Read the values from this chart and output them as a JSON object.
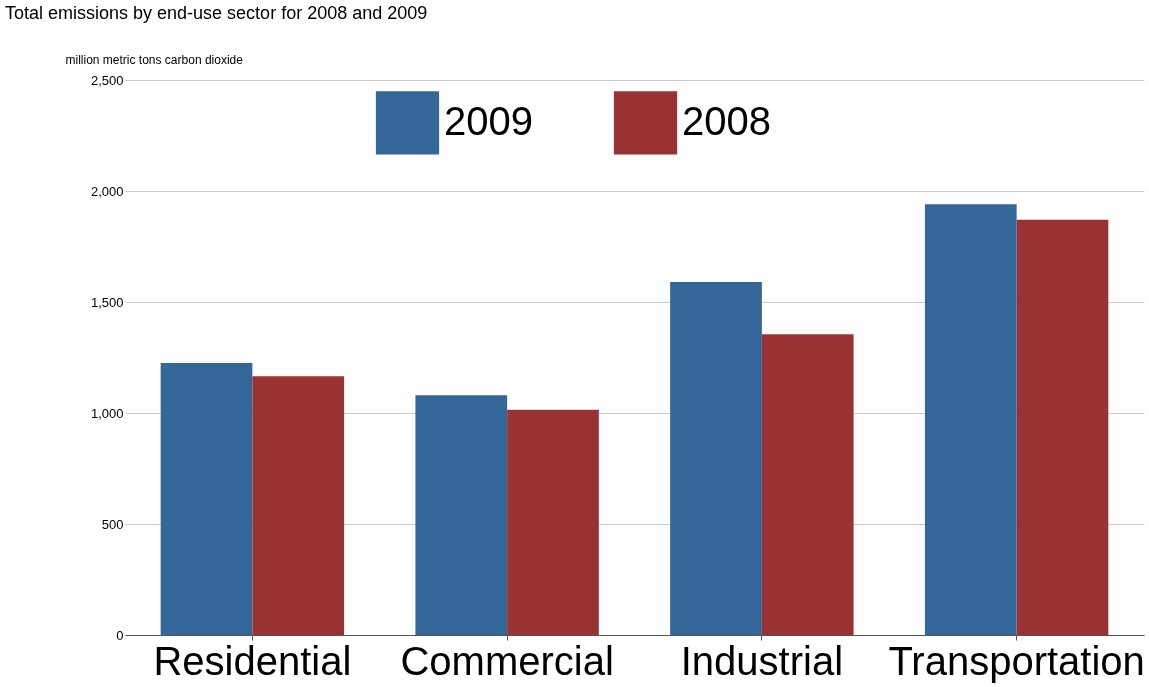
{
  "chart_data": {
    "type": "bar",
    "title": "Total emissions by end-use sector for 2008 and 2009",
    "ylabel": "million metric tons carbon dioxide",
    "categories": [
      "Residential",
      "Commercial",
      "Industrial",
      "Transportation"
    ],
    "series": [
      {
        "name": "2009",
        "color": "#336699",
        "values": [
          1225,
          1080,
          1590,
          1940
        ]
      },
      {
        "name": "2008",
        "color": "#993333",
        "values": [
          1165,
          1015,
          1355,
          1870
        ]
      }
    ],
    "ylim": [
      0,
      2500
    ],
    "yticks": [
      0,
      500,
      {
        "value": 1000,
        "label": "1,000"
      },
      {
        "value": 1500,
        "label": "1,500"
      },
      {
        "value": 2000,
        "label": "2,000"
      },
      {
        "value": 2500,
        "label": "2,500"
      }
    ],
    "grid": "y",
    "legend": "top"
  }
}
